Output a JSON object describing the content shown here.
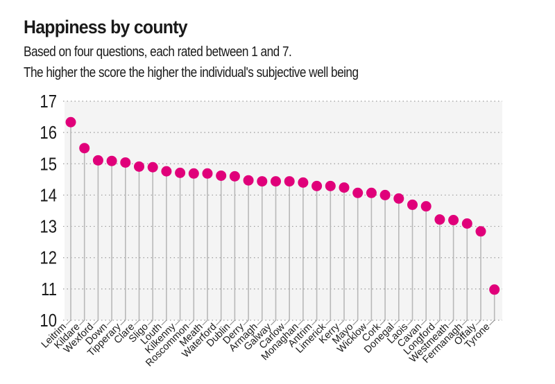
{
  "chart_data": {
    "type": "scatter",
    "variant": "lollipop",
    "title": "Happiness by county",
    "subtitle": [
      "Based on four questions, each rated between 1 and 7.",
      "The higher the score the higher the individual's subjective well being"
    ],
    "xlabel": "",
    "ylabel": "",
    "ylim": [
      10,
      17
    ],
    "yticks": [
      10,
      11,
      12,
      13,
      14,
      15,
      16,
      17
    ],
    "grid": "horizontal-dotted",
    "legend": "none",
    "colors": {
      "dot": "#E0007A",
      "stem": "#b8b8b8",
      "plot_bg": "#f4f4f4",
      "grid": "#9a9a9a"
    },
    "categories": [
      "Leitrim",
      "Kildare",
      "Wexford",
      "Down",
      "Tipperary",
      "Clare",
      "Sligo",
      "Louth",
      "Kilkenny",
      "Roscommon",
      "Meath",
      "Waterford",
      "Dublin",
      "Derry",
      "Armagh",
      "Galway",
      "Carlow",
      "Monaghan",
      "Antrim",
      "Limerick",
      "Kerry",
      "Mayo",
      "Wicklow",
      "Cork",
      "Donegal",
      "Laois",
      "Cavan",
      "Longford",
      "Westmeath",
      "Fermanagh",
      "Offaly",
      "Tyrone"
    ],
    "values": [
      16.33,
      15.5,
      15.11,
      15.09,
      15.04,
      14.91,
      14.89,
      14.76,
      14.71,
      14.69,
      14.69,
      14.62,
      14.6,
      14.47,
      14.44,
      14.44,
      14.44,
      14.4,
      14.29,
      14.29,
      14.24,
      14.07,
      14.07,
      14.0,
      13.89,
      13.69,
      13.64,
      13.22,
      13.2,
      13.09,
      12.84,
      10.98
    ]
  }
}
